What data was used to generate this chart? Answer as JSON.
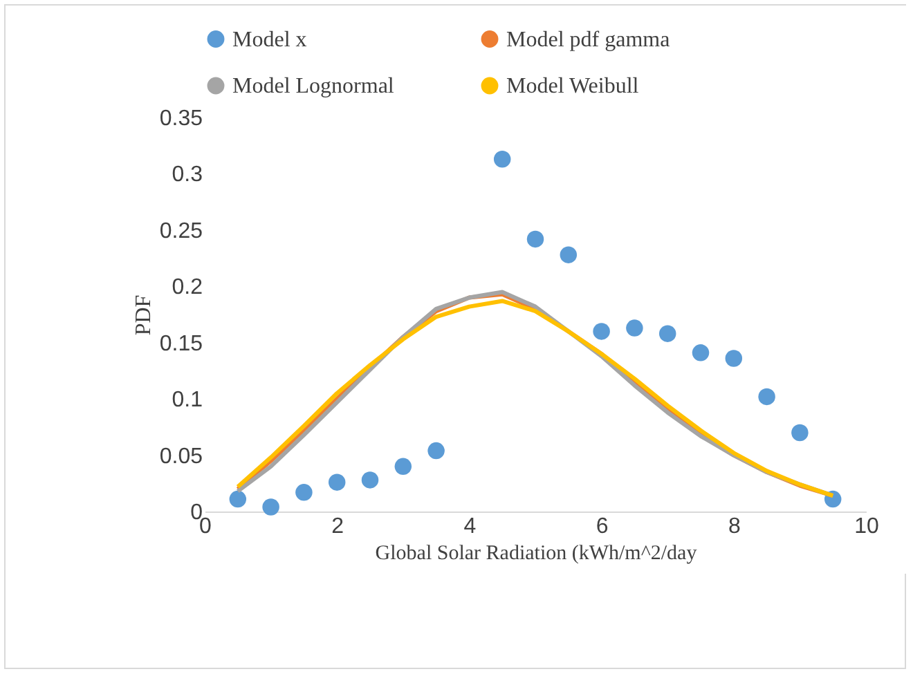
{
  "chart_data": {
    "type": "scatter",
    "xlabel": "Global Solar Radiation (kWh/m^2/day",
    "ylabel": "PDF",
    "legend": "top",
    "xlim": [
      0,
      10
    ],
    "xticks": [
      0,
      2,
      4,
      6,
      8,
      10
    ],
    "ylim": [
      0,
      0.35
    ],
    "yticks": [
      0,
      0.05,
      0.1,
      0.15,
      0.2,
      0.25,
      0.3,
      0.35
    ],
    "x": [
      0.5,
      1,
      1.5,
      2,
      2.5,
      3,
      3.5,
      4,
      4.5,
      5,
      5.5,
      6,
      6.5,
      7,
      7.5,
      8,
      8.5,
      9,
      9.5
    ],
    "series": [
      {
        "name": "Model x",
        "color": "#5b9bd5",
        "x": [
          0.5,
          1,
          1.5,
          2,
          2.5,
          3,
          3.5,
          4.5,
          5,
          5.5,
          6,
          6.5,
          7,
          7.5,
          8,
          8.5,
          9,
          9.5
        ],
        "values": [
          0.011,
          0.004,
          0.017,
          0.026,
          0.028,
          0.04,
          0.054,
          0.313,
          0.242,
          0.228,
          0.16,
          0.163,
          0.158,
          0.141,
          0.136,
          0.102,
          0.07,
          0.011
        ]
      },
      {
        "name": "Model pdf gamma",
        "type": "line",
        "color": "#ed7d31",
        "values": [
          0.02,
          0.045,
          0.072,
          0.1,
          0.128,
          0.155,
          0.178,
          0.19,
          0.193,
          0.18,
          0.16,
          0.14,
          0.115,
          0.09,
          0.068,
          0.05,
          0.035,
          0.023,
          0.014
        ]
      },
      {
        "name": "Model Lognormal",
        "type": "line",
        "color": "#a5a5a5",
        "values": [
          0.018,
          0.04,
          0.068,
          0.097,
          0.126,
          0.155,
          0.18,
          0.19,
          0.195,
          0.182,
          0.16,
          0.138,
          0.112,
          0.088,
          0.067,
          0.05,
          0.035,
          0.024,
          0.014
        ]
      },
      {
        "name": "Model Weibull",
        "type": "line",
        "color": "#ffc000",
        "values": [
          0.022,
          0.048,
          0.076,
          0.105,
          0.13,
          0.153,
          0.173,
          0.182,
          0.187,
          0.178,
          0.16,
          0.14,
          0.118,
          0.094,
          0.072,
          0.052,
          0.036,
          0.024,
          0.014
        ]
      }
    ]
  }
}
